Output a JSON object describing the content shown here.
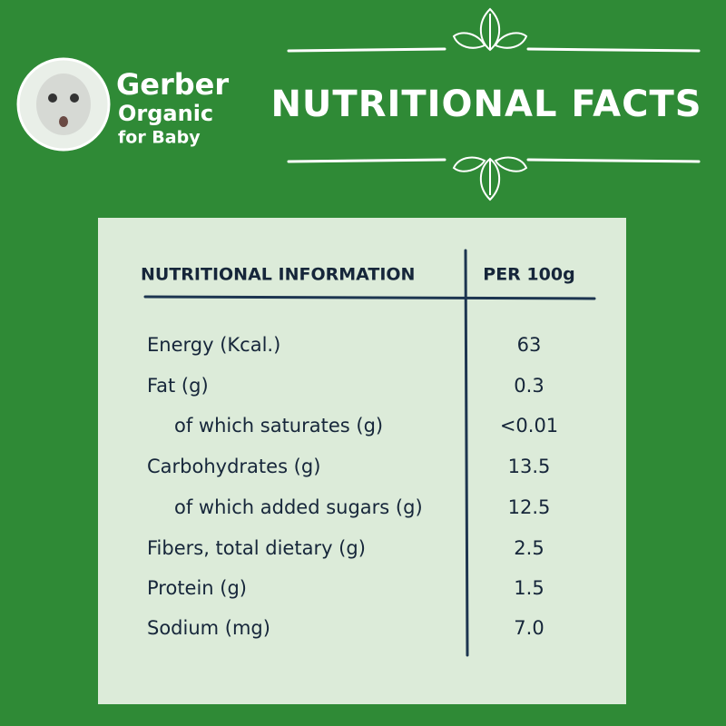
{
  "brand": {
    "name": "Gerber",
    "line2": "Organic",
    "line3": "for Baby"
  },
  "title": "NUTRITIONAL FACTS",
  "table": {
    "header": [
      "NUTRITIONAL INFORMATION",
      "PER 100g"
    ],
    "rows": [
      [
        "Energy (Kcal.)",
        "63"
      ],
      [
        "Fat (g)",
        "0.3"
      ],
      [
        "of which saturates (g)",
        "<0.01"
      ],
      [
        "Carbohydrates (g)",
        "13.5"
      ],
      [
        "of which added sugars (g)",
        "12.5"
      ],
      [
        "Fibers, total dietary (g)",
        "2.5"
      ],
      [
        "Protein (g)",
        "1.5"
      ],
      [
        "Sodium (mg)",
        "7.0"
      ]
    ]
  }
}
